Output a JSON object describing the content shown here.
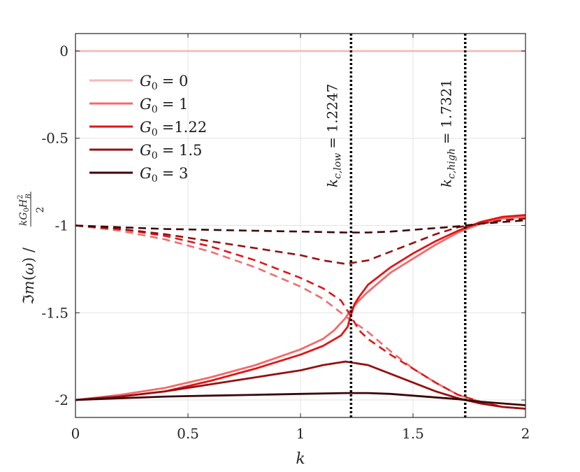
{
  "chart_data": {
    "type": "line",
    "xlabel": "k",
    "ylabel": "ℑm(ω) / (kG₀H²_B / 2)",
    "xlim": [
      0,
      2
    ],
    "ylim": [
      -2.1,
      0.1
    ],
    "xticks": [
      "0",
      "0.5",
      "1",
      "1.5",
      "2"
    ],
    "yticks": [
      "0",
      "-0.5",
      "-1",
      "-1.5",
      "-2"
    ],
    "xtick_values": [
      0,
      0.5,
      1,
      1.5,
      2
    ],
    "ytick_values": [
      0,
      -0.5,
      -1,
      -1.5,
      -2
    ],
    "grid": true,
    "legend_position": "top-left",
    "vlines": [
      {
        "x": 1.2247,
        "label_main": "k",
        "label_sub": "c,low",
        "label_value": "= 1.2247"
      },
      {
        "x": 1.7321,
        "label_main": "k",
        "label_sub": "c,high",
        "label_value": "= 1.7321"
      }
    ],
    "series": [
      {
        "name": "G₀ = 0",
        "legend_text": "= 0",
        "color": "#f7b7b7",
        "solid": {
          "x": [
            0,
            2
          ],
          "y": [
            0,
            0
          ]
        },
        "dashed": null
      },
      {
        "name": "G₀ = 1",
        "legend_text": "= 1",
        "color": "#f26a6a",
        "solid": {
          "x": [
            0,
            0.2,
            0.4,
            0.6,
            0.8,
            1.0,
            1.1,
            1.15,
            1.2,
            1.22,
            1.24,
            1.26,
            1.3,
            1.4,
            1.5,
            1.6,
            1.7,
            1.8,
            1.9,
            2.0
          ],
          "y": [
            -2.0,
            -1.97,
            -1.93,
            -1.87,
            -1.8,
            -1.71,
            -1.65,
            -1.6,
            -1.53,
            -1.49,
            -1.46,
            -1.43,
            -1.38,
            -1.27,
            -1.19,
            -1.11,
            -1.04,
            -0.99,
            -0.96,
            -0.95
          ]
        },
        "dashed": {
          "x": [
            0,
            0.2,
            0.4,
            0.6,
            0.8,
            1.0,
            1.1,
            1.2,
            1.3,
            1.4,
            1.5,
            1.6,
            1.7,
            1.8,
            1.9,
            2.0
          ],
          "y": [
            -1.0,
            -1.03,
            -1.08,
            -1.15,
            -1.24,
            -1.35,
            -1.42,
            -1.52,
            -1.61,
            -1.72,
            -1.82,
            -1.9,
            -1.97,
            -2.01,
            -2.04,
            -2.05
          ]
        }
      },
      {
        "name": "G₀ =1.22",
        "legend_text": "=1.22",
        "color": "#e31414",
        "solid": {
          "x": [
            0,
            0.2,
            0.4,
            0.6,
            0.8,
            1.0,
            1.1,
            1.18,
            1.21,
            1.22,
            1.23,
            1.24,
            1.26,
            1.3,
            1.4,
            1.5,
            1.6,
            1.7,
            1.8,
            1.9,
            2.0
          ],
          "y": [
            -2.0,
            -1.98,
            -1.95,
            -1.89,
            -1.82,
            -1.74,
            -1.69,
            -1.63,
            -1.58,
            -1.53,
            -1.49,
            -1.45,
            -1.41,
            -1.34,
            -1.24,
            -1.16,
            -1.09,
            -1.03,
            -0.98,
            -0.95,
            -0.94
          ]
        },
        "dashed": {
          "x": [
            0,
            0.2,
            0.4,
            0.6,
            0.8,
            1.0,
            1.1,
            1.18,
            1.22,
            1.26,
            1.3,
            1.4,
            1.5,
            1.6,
            1.7,
            1.8,
            1.9,
            2.0
          ],
          "y": [
            -1.0,
            -1.02,
            -1.06,
            -1.12,
            -1.2,
            -1.3,
            -1.36,
            -1.43,
            -1.51,
            -1.6,
            -1.65,
            -1.74,
            -1.82,
            -1.9,
            -1.97,
            -2.01,
            -2.04,
            -2.05
          ]
        }
      },
      {
        "name": "G₀ = 1.5",
        "legend_text": "= 1.5",
        "color": "#961010",
        "solid": {
          "x": [
            0,
            0.2,
            0.4,
            0.6,
            0.8,
            1.0,
            1.1,
            1.2,
            1.3,
            1.4,
            1.5,
            1.6,
            1.7,
            1.8,
            1.9,
            2.0
          ],
          "y": [
            -2.0,
            -1.98,
            -1.95,
            -1.91,
            -1.87,
            -1.83,
            -1.8,
            -1.78,
            -1.8,
            -1.85,
            -1.9,
            -1.95,
            -1.99,
            -2.02,
            -2.04,
            -2.05
          ]
        },
        "dashed": {
          "x": [
            0,
            0.2,
            0.4,
            0.6,
            0.8,
            1.0,
            1.1,
            1.2,
            1.3,
            1.4,
            1.5,
            1.6,
            1.7,
            1.8,
            1.9,
            2.0
          ],
          "y": [
            -1.0,
            -1.02,
            -1.05,
            -1.09,
            -1.13,
            -1.17,
            -1.2,
            -1.22,
            -1.2,
            -1.15,
            -1.1,
            -1.05,
            -1.01,
            -0.99,
            -0.97,
            -0.96
          ]
        }
      },
      {
        "name": "G₀ = 3",
        "legend_text": "= 3",
        "color": "#3d0606",
        "solid": {
          "x": [
            0,
            0.2,
            0.4,
            0.6,
            0.8,
            1.0,
            1.2,
            1.3,
            1.4,
            1.5,
            1.6,
            1.7,
            1.8,
            1.9,
            2.0
          ],
          "y": [
            -2.0,
            -1.99,
            -1.98,
            -1.975,
            -1.97,
            -1.965,
            -1.96,
            -1.96,
            -1.965,
            -1.975,
            -1.985,
            -1.995,
            -2.01,
            -2.02,
            -2.03
          ]
        },
        "dashed": {
          "x": [
            0,
            0.2,
            0.4,
            0.6,
            0.8,
            1.0,
            1.2,
            1.3,
            1.4,
            1.5,
            1.6,
            1.7,
            1.8,
            1.9,
            2.0
          ],
          "y": [
            -1.0,
            -1.01,
            -1.02,
            -1.025,
            -1.03,
            -1.035,
            -1.04,
            -1.04,
            -1.035,
            -1.025,
            -1.015,
            -1.005,
            -0.99,
            -0.98,
            -0.97
          ]
        }
      }
    ]
  }
}
